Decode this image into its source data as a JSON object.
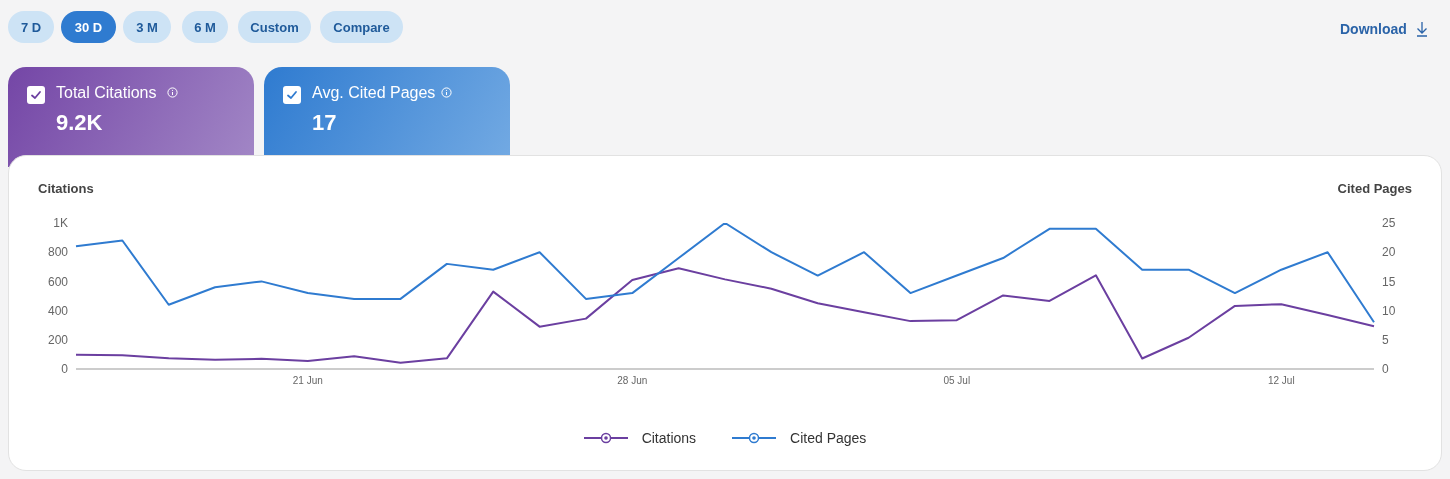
{
  "chart_data": {
    "type": "line",
    "ylabel": "Citations",
    "y2label": "Cited Pages",
    "annotations": [
      "7 D",
      "30 D",
      "3 M",
      "6 M",
      "Custom",
      "Compare",
      "Download",
      "Total Citations",
      "9.2K",
      "Avg. Cited Pages",
      "17"
    ],
    "categories": [
      null,
      null,
      null,
      null,
      null,
      "21 Jun",
      null,
      null,
      null,
      null,
      null,
      null,
      "28 Jun",
      null,
      null,
      null,
      null,
      null,
      null,
      "05 Jul",
      null,
      null,
      null,
      null,
      null,
      null,
      "12 Jul",
      null,
      null
    ],
    "series": [
      {
        "name": "Citations",
        "color": "#6b3fa0",
        "values": [
          98,
          95,
          73,
          64,
          70,
          55,
          88,
          43,
          73,
          530,
          290,
          345,
          610,
          690,
          614,
          550,
          450,
          388,
          328,
          334,
          504,
          466,
          642,
          72,
          214,
          432,
          444,
          370,
          293
        ]
      },
      {
        "name": "Cited Pages",
        "color": "#2f7bd0",
        "axis": "y2",
        "values": [
          21,
          22,
          11,
          14,
          15,
          13,
          12,
          12,
          18,
          17,
          20,
          12,
          13,
          19,
          25,
          20,
          16,
          20,
          13,
          16,
          19,
          24,
          24,
          17,
          17,
          13,
          17,
          20,
          8
        ]
      }
    ],
    "ylim": [
      0,
      1000
    ],
    "yticks": [
      0,
      200,
      400,
      600,
      800,
      {
        "value": 1000,
        "label": "1K"
      }
    ],
    "y2lim": [
      0,
      25
    ],
    "y2ticks": [
      0,
      5,
      10,
      15,
      20,
      25
    ],
    "legend": "bottom"
  }
}
